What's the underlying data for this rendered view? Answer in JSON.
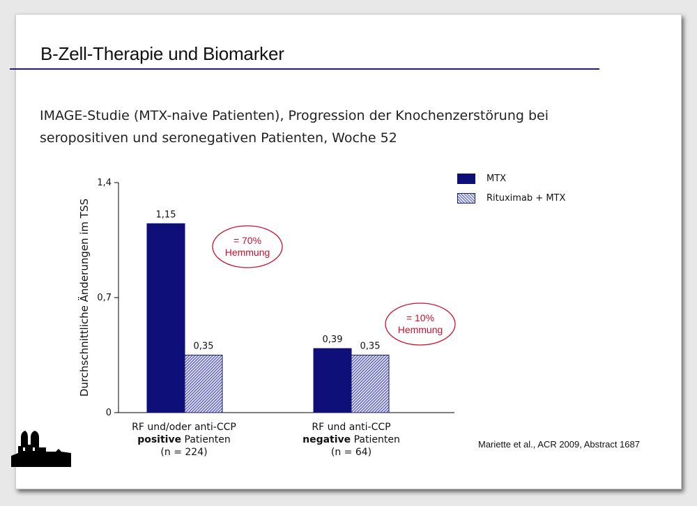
{
  "slide": {
    "title": "B-Zell-Therapie und Biomarker",
    "subtitle": "IMAGE-Studie (MTX-naive Patienten), Progression der Knochenzerstörung bei seropositiven und seronegativen Patienten, Woche 52",
    "citation": "Mariette et al., ACR 2009, Abstract 1687",
    "logo_icon": "frauenkirche-silhouette-icon"
  },
  "chart_data": {
    "type": "bar",
    "ylabel": "Durchschnittliche Änderungen im TSS",
    "ylim": [
      0,
      1.4
    ],
    "yticks": [
      "0",
      "0,7",
      "1,4"
    ],
    "ytick_values": [
      0,
      0.7,
      1.4
    ],
    "categories": [
      {
        "line1": "RF und/oder anti-CCP",
        "bold": "positive",
        "rest": " Patienten",
        "n": "(n = 224)"
      },
      {
        "line1": "RF und anti-CCP",
        "bold": "negative",
        "rest": " Patienten",
        "n": "(n = 64)"
      }
    ],
    "series": [
      {
        "name": "MTX",
        "values": [
          1.15,
          0.39
        ],
        "labels": [
          "1,15",
          "0,39"
        ],
        "color": "#0f0f7a",
        "pattern": "solid"
      },
      {
        "name": "Rituximab + MTX",
        "values": [
          0.35,
          0.35
        ],
        "labels": [
          "0,35",
          "0,35"
        ],
        "color": "#1a1a7a",
        "pattern": "hatched"
      }
    ],
    "annotations": [
      {
        "line1": "= 70%",
        "line2": "Hemmung",
        "color": "#c8102e"
      },
      {
        "line1": "= 10%",
        "line2": "Hemmung",
        "color": "#c8102e"
      }
    ],
    "legend_position": "top-right",
    "grid": false
  }
}
